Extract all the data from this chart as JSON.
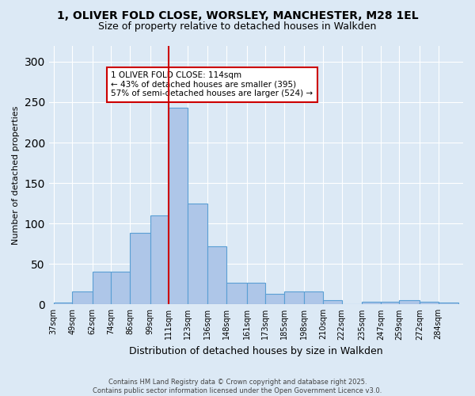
{
  "title_line1": "1, OLIVER FOLD CLOSE, WORSLEY, MANCHESTER, M28 1EL",
  "title_line2": "Size of property relative to detached houses in Walkden",
  "xlabel": "Distribution of detached houses by size in Walkden",
  "ylabel": "Number of detached properties",
  "bar_color": "#aec6e8",
  "bar_edge_color": "#5a9fd4",
  "annotation_line1": "1 OLIVER FOLD CLOSE: 114sqm",
  "annotation_line2": "← 43% of detached houses are smaller (395)",
  "annotation_line3": "57% of semi-detached houses are larger (524) →",
  "annotation_box_color": "#ffffff",
  "annotation_box_edge": "#cc0000",
  "vline_color": "#cc0000",
  "vline_x": 111,
  "categories": [
    "37sqm",
    "49sqm",
    "62sqm",
    "74sqm",
    "86sqm",
    "99sqm",
    "111sqm",
    "123sqm",
    "136sqm",
    "148sqm",
    "161sqm",
    "173sqm",
    "185sqm",
    "198sqm",
    "210sqm",
    "222sqm",
    "235sqm",
    "247sqm",
    "259sqm",
    "272sqm",
    "284sqm"
  ],
  "bin_left_edges": [
    37,
    49,
    62,
    74,
    86,
    99,
    111,
    123,
    136,
    148,
    161,
    173,
    185,
    198,
    210,
    222,
    235,
    247,
    259,
    272,
    284
  ],
  "bin_widths": [
    12,
    13,
    12,
    12,
    13,
    12,
    12,
    13,
    12,
    13,
    12,
    12,
    13,
    12,
    12,
    13,
    12,
    12,
    13,
    12,
    13
  ],
  "values": [
    2,
    16,
    40,
    40,
    88,
    110,
    243,
    125,
    72,
    27,
    27,
    13,
    16,
    16,
    5,
    0,
    3,
    3,
    5,
    3,
    2
  ],
  "ylim": [
    0,
    320
  ],
  "yticks": [
    0,
    50,
    100,
    150,
    200,
    250,
    300
  ],
  "background_color": "#dce9f5",
  "footer_line1": "Contains HM Land Registry data © Crown copyright and database right 2025.",
  "footer_line2": "Contains public sector information licensed under the Open Government Licence v3.0."
}
